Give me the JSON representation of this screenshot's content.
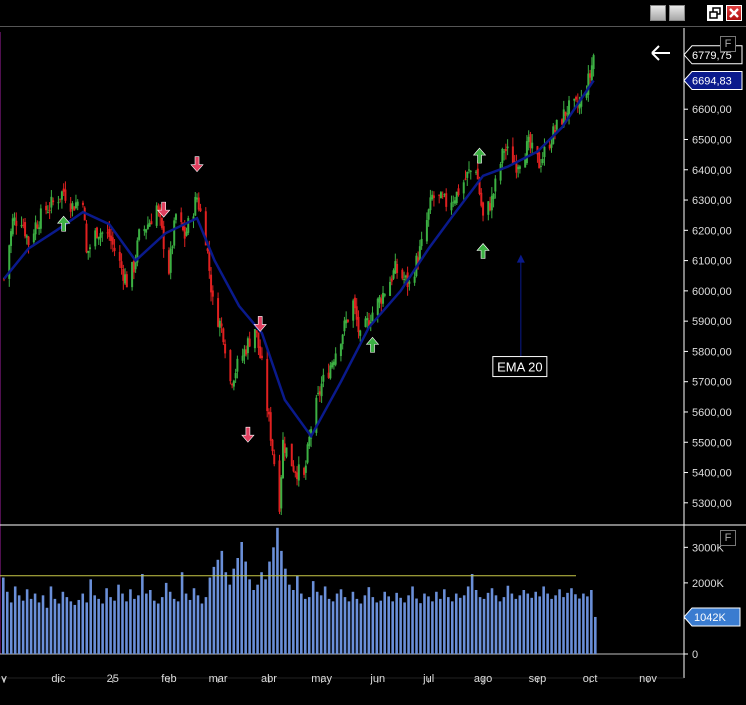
{
  "window": {
    "controls": [
      "minimize-icon",
      "maximize-icon",
      "restore-icon",
      "close-icon"
    ],
    "panel_button_label": "F",
    "back_icon": "arrow-left-icon"
  },
  "chart_data": [
    {
      "type": "candlestick",
      "title": "",
      "ylim": [
        5230,
        6855
      ],
      "y_ticks": [
        "5300,00",
        "5400,00",
        "5500,00",
        "5600,00",
        "5700,00",
        "5800,00",
        "5900,00",
        "6000,00",
        "6100,00",
        "6200,00",
        "6300,00",
        "6400,00",
        "6500,00",
        "6600,00"
      ],
      "x_ticks": [
        {
          "label": "v",
          "date": "2024-11-01"
        },
        {
          "label": "dic",
          "date": "2024-12-02"
        },
        {
          "label": "25",
          "date": "2025-01-02"
        },
        {
          "label": "feb",
          "date": "2025-02-03"
        },
        {
          "label": "mar",
          "date": "2025-03-03"
        },
        {
          "label": "abr",
          "date": "2025-04-01"
        },
        {
          "label": "may",
          "date": "2025-05-01"
        },
        {
          "label": "jun",
          "date": "2025-06-02"
        },
        {
          "label": "jul",
          "date": "2025-07-01"
        },
        {
          "label": "ago",
          "date": "2025-08-01"
        },
        {
          "label": "sep",
          "date": "2025-09-01"
        },
        {
          "label": "oct",
          "date": "2025-10-01"
        },
        {
          "label": "nov",
          "date": "2025-11-03"
        }
      ],
      "close_path": [
        [
          "2024-11-01",
          6040
        ],
        [
          "2024-11-06",
          6230
        ],
        [
          "2024-11-11",
          6240
        ],
        [
          "2024-11-15",
          6160
        ],
        [
          "2024-11-19",
          6220
        ],
        [
          "2024-11-25",
          6270
        ],
        [
          "2024-11-29",
          6290
        ],
        [
          "2024-12-05",
          6330
        ],
        [
          "2024-12-10",
          6280
        ],
        [
          "2024-12-16",
          6310
        ],
        [
          "2024-12-18",
          6120
        ],
        [
          "2024-12-24",
          6200
        ],
        [
          "2024-12-31",
          6180
        ],
        [
          "2025-01-06",
          6090
        ],
        [
          "2025-01-10",
          6030
        ],
        [
          "2025-01-14",
          6080
        ],
        [
          "2025-01-17",
          6180
        ],
        [
          "2025-01-23",
          6230
        ],
        [
          "2025-01-27",
          6280
        ],
        [
          "2025-02-03",
          6070
        ],
        [
          "2025-02-07",
          6250
        ],
        [
          "2025-02-12",
          6180
        ],
        [
          "2025-02-19",
          6310
        ],
        [
          "2025-02-24",
          6180
        ],
        [
          "2025-02-28",
          5960
        ],
        [
          "2025-03-06",
          5860
        ],
        [
          "2025-03-10",
          5700
        ],
        [
          "2025-03-13",
          5740
        ],
        [
          "2025-03-18",
          5800
        ],
        [
          "2025-03-24",
          5880
        ],
        [
          "2025-03-28",
          5750
        ],
        [
          "2025-04-03",
          5480
        ],
        [
          "2025-04-07",
          5300
        ],
        [
          "2025-04-09",
          5500
        ],
        [
          "2025-04-15",
          5420
        ],
        [
          "2025-04-21",
          5380
        ],
        [
          "2025-04-25",
          5550
        ],
        [
          "2025-05-01",
          5690
        ],
        [
          "2025-05-05",
          5740
        ],
        [
          "2025-05-12",
          5850
        ],
        [
          "2025-05-19",
          5960
        ],
        [
          "2025-05-23",
          5840
        ],
        [
          "2025-05-29",
          5920
        ],
        [
          "2025-06-05",
          5990
        ],
        [
          "2025-06-12",
          6070
        ],
        [
          "2025-06-20",
          6020
        ],
        [
          "2025-06-27",
          6150
        ],
        [
          "2025-07-03",
          6310
        ],
        [
          "2025-07-11",
          6290
        ],
        [
          "2025-07-17",
          6320
        ],
        [
          "2025-07-24",
          6390
        ],
        [
          "2025-07-28",
          6410
        ],
        [
          "2025-08-01",
          6240
        ],
        [
          "2025-08-06",
          6300
        ],
        [
          "2025-08-13",
          6470
        ],
        [
          "2025-08-20",
          6420
        ],
        [
          "2025-08-27",
          6480
        ],
        [
          "2025-09-02",
          6420
        ],
        [
          "2025-09-10",
          6520
        ],
        [
          "2025-09-18",
          6600
        ],
        [
          "2025-09-25",
          6610
        ],
        [
          "2025-10-01",
          6710
        ],
        [
          "2025-10-03",
          6779.75
        ]
      ],
      "ema_path": [
        [
          "2024-11-01",
          6040
        ],
        [
          "2024-11-15",
          6140
        ],
        [
          "2024-12-01",
          6200
        ],
        [
          "2024-12-16",
          6260
        ],
        [
          "2024-12-31",
          6220
        ],
        [
          "2025-01-15",
          6100
        ],
        [
          "2025-02-01",
          6190
        ],
        [
          "2025-02-19",
          6240
        ],
        [
          "2025-03-01",
          6100
        ],
        [
          "2025-03-15",
          5950
        ],
        [
          "2025-03-28",
          5860
        ],
        [
          "2025-04-10",
          5640
        ],
        [
          "2025-04-25",
          5520
        ],
        [
          "2025-05-12",
          5700
        ],
        [
          "2025-05-28",
          5880
        ],
        [
          "2025-06-15",
          6000
        ],
        [
          "2025-07-01",
          6140
        ],
        [
          "2025-07-15",
          6250
        ],
        [
          "2025-08-01",
          6380
        ],
        [
          "2025-08-15",
          6410
        ],
        [
          "2025-09-01",
          6460
        ],
        [
          "2025-09-15",
          6540
        ],
        [
          "2025-10-03",
          6694.83
        ]
      ],
      "signals_up": [
        "2024-12-05",
        "2025-05-30",
        "2025-08-01"
      ],
      "signals_up_top": [
        "2025-07-30"
      ],
      "signals_down": [
        "2025-01-31",
        "2025-02-19",
        "2025-03-27"
      ],
      "signals_down_low": [
        "2025-03-20"
      ],
      "price_labels": [
        {
          "text": "6779,75",
          "value": 6779.75,
          "style": "last"
        },
        {
          "text": "6694,83",
          "value": 6694.83,
          "style": "ema"
        }
      ],
      "annotation": {
        "text": "EMA 20",
        "date": "2025-08-10",
        "value": 5750
      },
      "colors": {
        "up": "#3cb043",
        "down": "#e02020",
        "ema": "#0a1a8c",
        "signal_up": "#3cb043",
        "signal_down": "#e04060"
      }
    },
    {
      "type": "bar",
      "series_name": "volume",
      "y_ticks": [
        "0",
        "1000K",
        "2000K",
        "3000K"
      ],
      "ylim": [
        0,
        3600
      ],
      "avg_line": 2200,
      "last_value_label": "1042K",
      "bars": [
        2150,
        1750,
        1450,
        1900,
        1650,
        1500,
        1820,
        1550,
        1700,
        1450,
        1650,
        1300,
        1900,
        1550,
        1420,
        1750,
        1600,
        1480,
        1380,
        1520,
        1700,
        1450,
        2100,
        1650,
        1550,
        1420,
        1850,
        1600,
        1500,
        1950,
        1700,
        1480,
        1820,
        1550,
        1650,
        2250,
        1700,
        1800,
        1500,
        1420,
        1600,
        2000,
        1750,
        1550,
        1480,
        2300,
        1700,
        1520,
        1850,
        1650,
        1420,
        1600,
        2150,
        2450,
        2650,
        2900,
        2300,
        1950,
        2400,
        2700,
        3150,
        2600,
        2100,
        1800,
        1950,
        2300,
        2100,
        2600,
        3000,
        3550,
        2900,
        2400,
        1950,
        1800,
        2200,
        1700,
        1550,
        1600,
        2050,
        1750,
        1650,
        1900,
        1550,
        1480,
        1700,
        1820,
        1600,
        1480,
        1750,
        1550,
        1420,
        1650,
        1880,
        1600,
        1450,
        1500,
        1750,
        1620,
        1480,
        1720,
        1580,
        1450,
        1650,
        1900,
        1560,
        1430,
        1700,
        1620,
        1480,
        1750,
        1550,
        1820,
        1600,
        1480,
        1700,
        1580,
        1650,
        1900,
        2250,
        1800,
        1600,
        1550,
        1720,
        1850,
        1650,
        1480,
        1600,
        1920,
        1700,
        1550,
        1650,
        1800,
        1700,
        1580,
        1750,
        1620,
        1900,
        1700,
        1550,
        1650,
        1820,
        1600,
        1720,
        1850,
        1680,
        1560,
        1700,
        1620,
        1800,
        1042
      ],
      "colors": {
        "bar": "#6a8fd8",
        "avg_line": "#c8c848"
      }
    }
  ]
}
